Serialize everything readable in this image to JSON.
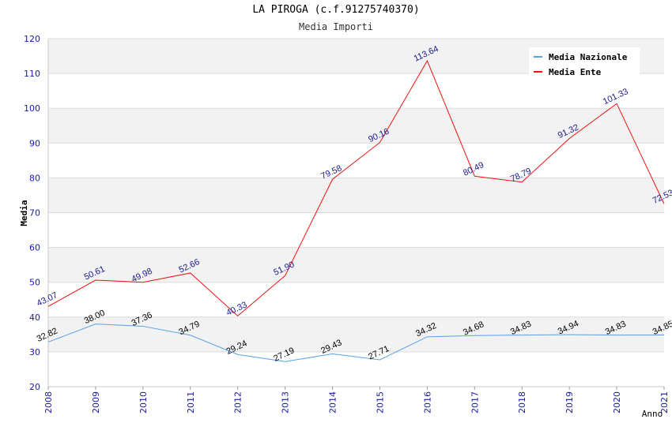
{
  "chart_data": {
    "type": "line",
    "title": "LA PIROGA (c.f.91275740370)",
    "subtitle": "Media Importi",
    "xlabel": "Anno",
    "ylabel": "Media",
    "ylim": [
      20,
      120
    ],
    "yticks": [
      20,
      30,
      40,
      50,
      60,
      70,
      80,
      90,
      100,
      110,
      120
    ],
    "categories": [
      "2008",
      "2009",
      "2010",
      "2011",
      "2012",
      "2013",
      "2014",
      "2015",
      "2016",
      "2017",
      "2018",
      "2019",
      "2020",
      "2021"
    ],
    "series": [
      {
        "name": "Media Nazionale",
        "color": "#5aa0e6",
        "values": [
          32.82,
          38.0,
          37.36,
          34.79,
          29.24,
          27.19,
          29.43,
          27.71,
          34.32,
          34.68,
          34.83,
          34.94,
          34.83,
          34.85
        ],
        "labels": [
          "32.82",
          "38.00",
          "37.36",
          "34.79",
          "29.24",
          "27.19",
          "29.43",
          "27.71",
          "34.32",
          "34.68",
          "34.83",
          "34.94",
          "34.83",
          "34.85"
        ]
      },
      {
        "name": "Media Ente",
        "color": "#ee1111",
        "values": [
          43.07,
          50.61,
          49.98,
          52.66,
          40.33,
          51.9,
          79.58,
          90.16,
          113.64,
          80.49,
          78.79,
          91.32,
          101.33,
          72.53
        ],
        "labels": [
          "43.07",
          "50.61",
          "49.98",
          "52.66",
          "40.33",
          "51.90",
          "79.58",
          "90.16",
          "113.64",
          "80.49",
          "78.79",
          "91.32",
          "101.33",
          "72.53"
        ]
      }
    ],
    "grid": true,
    "legend": "top-right"
  }
}
